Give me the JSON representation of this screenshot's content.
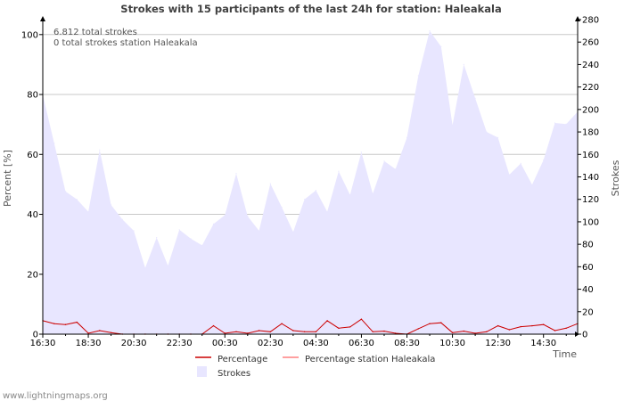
{
  "chart_data": {
    "type": "area",
    "title": "Strokes with 15 participants of the last 24h for station: Haleakala",
    "xlabel": "Time",
    "ylabel_left": "Percent   [%]",
    "ylabel_right": "Strokes",
    "ylim_left": [
      0,
      105
    ],
    "ylim_right": [
      0,
      280
    ],
    "left_ticks": [
      0,
      20,
      40,
      60,
      80,
      100
    ],
    "right_ticks": [
      0,
      20,
      40,
      60,
      80,
      100,
      120,
      140,
      160,
      180,
      200,
      220,
      240,
      260,
      280
    ],
    "x_tick_labels": [
      "16:30",
      "18:30",
      "20:30",
      "22:30",
      "00:30",
      "02:30",
      "04:30",
      "06:30",
      "08:30",
      "10:30",
      "12:30",
      "14:30"
    ],
    "x_hours": [
      0,
      2,
      4,
      6,
      8,
      10,
      12,
      14,
      16,
      18,
      20,
      22
    ],
    "x_range_hours": [
      0,
      23.5
    ],
    "info_lines": [
      "6.812 total strokes",
      "0 total strokes station Haleakala"
    ],
    "series": [
      {
        "name": "Strokes",
        "axis": "right",
        "color": "#e8e6ff",
        "x": [
          0,
          0.5,
          1,
          1.5,
          2,
          2.5,
          3,
          3.5,
          4,
          4.5,
          5,
          5.5,
          6,
          6.5,
          7,
          7.5,
          8,
          8.5,
          9,
          9.5,
          10,
          10.5,
          11,
          11.5,
          12,
          12.5,
          13,
          13.5,
          14,
          14.5,
          15,
          15.5,
          16,
          16.5,
          17,
          17.5,
          18,
          18.5,
          19,
          19.5,
          20,
          20.5,
          21,
          21.5,
          22,
          22.5,
          23,
          23.5
        ],
        "values": [
          213,
          170,
          127,
          120,
          109,
          164,
          115,
          102,
          92,
          59,
          86,
          61,
          93,
          85,
          79,
          98,
          106,
          143,
          105,
          92,
          134,
          113,
          91,
          120,
          128,
          109,
          145,
          124,
          162,
          125,
          154,
          147,
          175,
          230,
          270,
          256,
          186,
          240,
          210,
          180,
          175,
          142,
          152,
          133,
          155,
          188,
          187,
          198
        ]
      },
      {
        "name": "Percentage",
        "axis": "left",
        "color": "#cc0000",
        "x": [
          0,
          0.5,
          1,
          1.5,
          2,
          2.5,
          3,
          3.5,
          4,
          4.5,
          5,
          5.5,
          6,
          6.5,
          7,
          7.5,
          8,
          8.5,
          9,
          9.5,
          10,
          10.5,
          11,
          11.5,
          12,
          12.5,
          13,
          13.5,
          14,
          14.5,
          15,
          15.5,
          16,
          16.5,
          17,
          17.5,
          18,
          18.5,
          19,
          19.5,
          20,
          20.5,
          21,
          21.5,
          22,
          22.5,
          23,
          23.5
        ],
        "values": [
          4.5,
          3.5,
          3.2,
          4.0,
          0.3,
          1.2,
          0.5,
          0,
          0,
          0,
          0,
          0,
          0,
          0,
          0,
          2.8,
          0.3,
          0.8,
          0.3,
          1.2,
          0.8,
          3.5,
          1.2,
          0.8,
          0.8,
          4.5,
          2.0,
          2.4,
          5.0,
          0.8,
          1.0,
          0.3,
          0,
          1.8,
          3.5,
          3.8,
          0.5,
          1.0,
          0.3,
          0.8,
          2.8,
          1.5,
          2.5,
          2.8,
          3.2,
          1.2,
          2.0,
          3.5
        ]
      },
      {
        "name": "Percentage station Haleakala",
        "axis": "left",
        "color": "#ff8080",
        "x": [
          0,
          23.5
        ],
        "values": [
          0,
          0
        ]
      }
    ],
    "legend": [
      {
        "label": "Percentage",
        "kind": "line",
        "color": "#cc0000"
      },
      {
        "label": "Percentage station Haleakala",
        "kind": "line",
        "color": "#ff8080"
      },
      {
        "label": "Strokes",
        "kind": "box",
        "color": "#e8e6ff"
      }
    ]
  },
  "footer": "www.lightningmaps.org"
}
